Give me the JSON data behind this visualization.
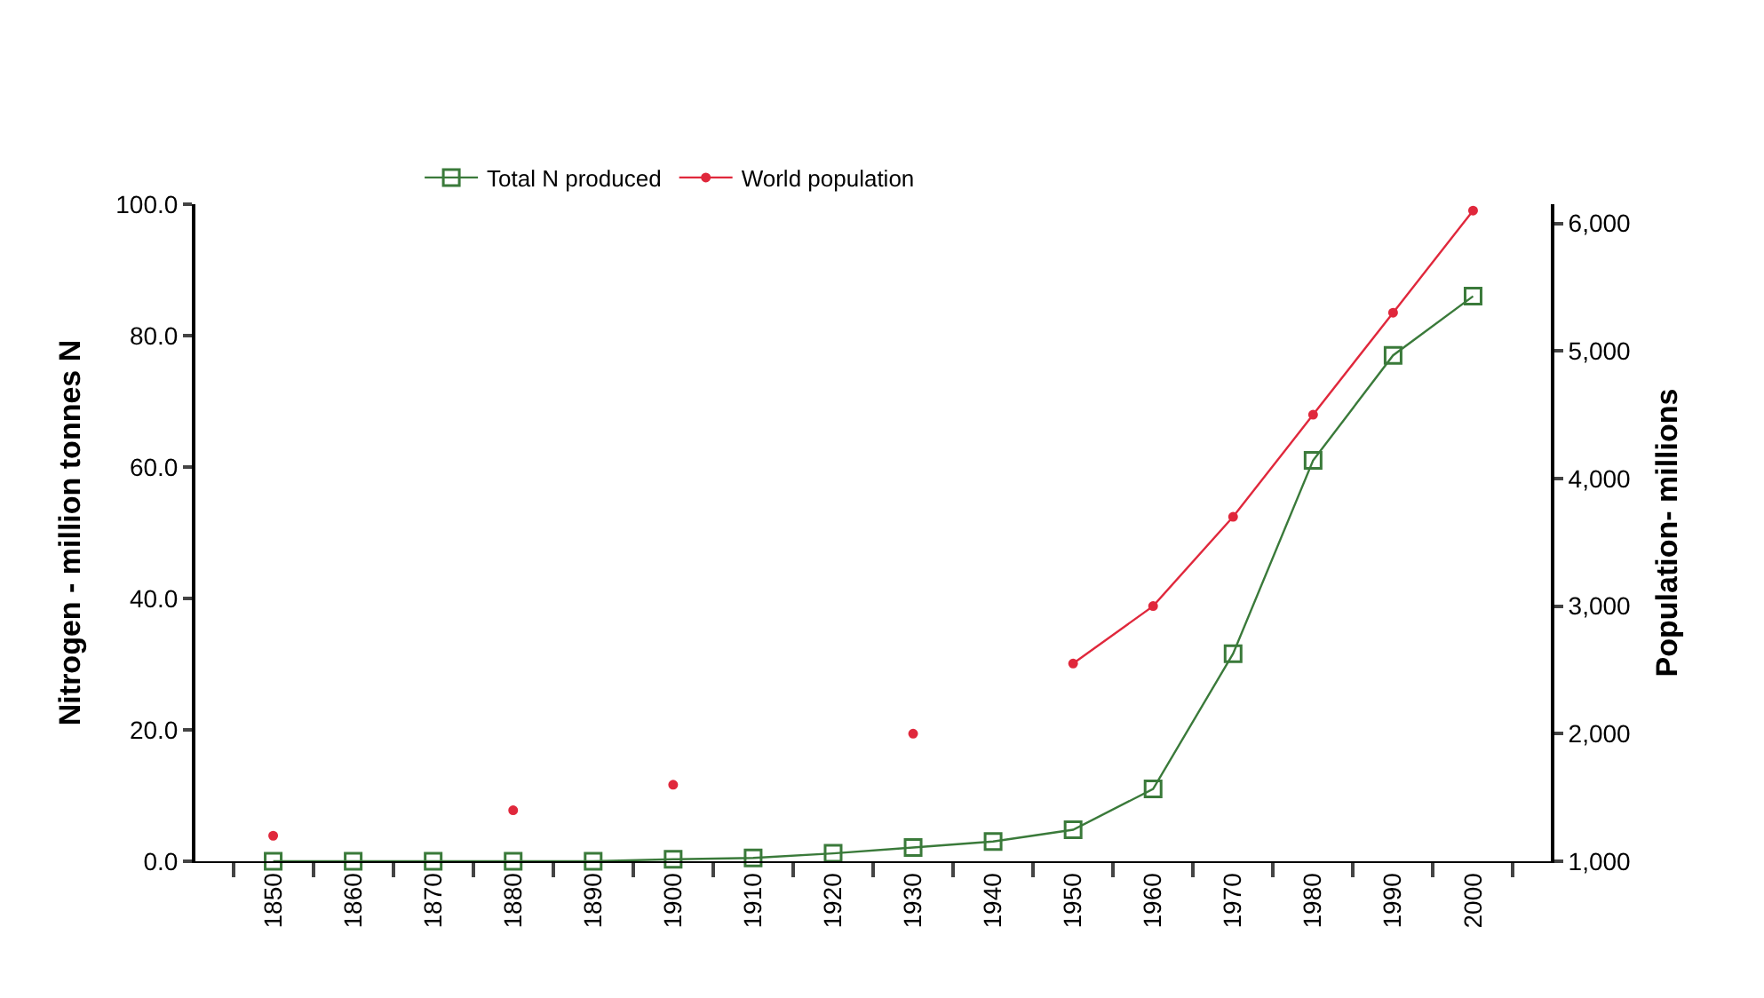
{
  "chart_data": {
    "type": "line",
    "ylabel": "Nitrogen - million tonnes N",
    "y2label": "Population- millions",
    "categories": [
      "1850",
      "1860",
      "1870",
      "1880",
      "1890",
      "1900",
      "1910",
      "1920",
      "1930",
      "1940",
      "1950",
      "1960",
      "1970",
      "1980",
      "1990",
      "2000"
    ],
    "series": [
      {
        "name": "Total N produced",
        "color": "#3a7a3a",
        "marker": "square",
        "values": [
          0,
          0,
          0,
          0,
          0,
          0.3,
          0.5,
          1.2,
          2.1,
          3.0,
          4.8,
          11,
          31.6,
          61,
          77,
          86
        ]
      },
      {
        "name": "World population",
        "color": "#e0283c",
        "marker": "circle",
        "axis": "y2",
        "values": [
          1200,
          null,
          null,
          1400,
          null,
          1600,
          null,
          null,
          2000,
          null,
          2550,
          3000,
          3700,
          4500,
          5300,
          6100
        ]
      }
    ],
    "ylim": [
      0,
      100
    ],
    "yticks": [
      {
        "value": 0,
        "label": "0.0"
      },
      {
        "value": 20,
        "label": "20.0"
      },
      {
        "value": 40,
        "label": "40.0"
      },
      {
        "value": 60,
        "label": "60.0"
      },
      {
        "value": 80,
        "label": "80.0"
      },
      {
        "value": 100,
        "label": "100.0"
      }
    ],
    "y2lim": [
      1000,
      6150
    ],
    "y2ticks": [
      {
        "value": 1000,
        "label": "1,000"
      },
      {
        "value": 2000,
        "label": "2,000"
      },
      {
        "value": 3000,
        "label": "3,000"
      },
      {
        "value": 4000,
        "label": "4,000"
      },
      {
        "value": 5000,
        "label": "5,000"
      },
      {
        "value": 6000,
        "label": "6,000"
      }
    ],
    "legend": "top"
  }
}
